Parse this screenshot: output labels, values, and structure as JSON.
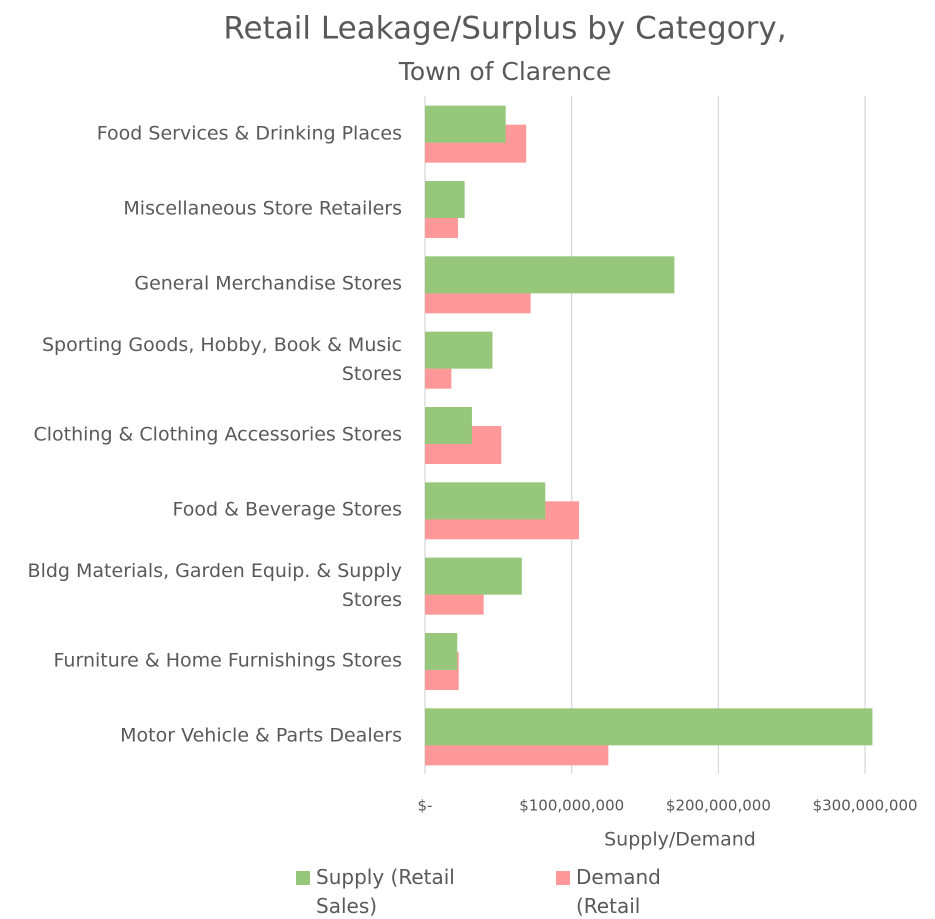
{
  "chart_data": {
    "type": "hbar",
    "title": "Retail Leakage/Surplus by Category,",
    "subtitle": "Town of Clarence",
    "x_label": "Supply/Demand",
    "categories": [
      "Food Services & Drinking Places",
      "Miscellaneous Store Retailers",
      "General Merchandise Stores",
      "Sporting Goods, Hobby, Book & Music Stores",
      "Clothing & Clothing Accessories Stores",
      "Food & Beverage Stores",
      "Bldg Materials, Garden Equip. & Supply Stores",
      "Furniture & Home Furnishings Stores",
      "Motor Vehicle & Parts Dealers"
    ],
    "series": [
      {
        "name": "Supply (Retail Sales)",
        "color": "#97c77a",
        "values": [
          55000000,
          27000000,
          170000000,
          46000000,
          32000000,
          82000000,
          66000000,
          22000000,
          305000000
        ]
      },
      {
        "name": "Demand (Retail Potential)",
        "color": "#ff9999",
        "values": [
          69000000,
          22500000,
          72000000,
          18000000,
          52000000,
          105000000,
          40000000,
          23000000,
          125000000
        ]
      }
    ],
    "xlim": [
      0,
      320000000
    ],
    "xticks": [
      {
        "value": 0,
        "label": "$-"
      },
      {
        "value": 100000000,
        "label": "$100,000,000"
      },
      {
        "value": 200000000,
        "label": "$200,000,000"
      },
      {
        "value": 300000000,
        "label": "$300,000,000"
      }
    ],
    "grid": true
  }
}
